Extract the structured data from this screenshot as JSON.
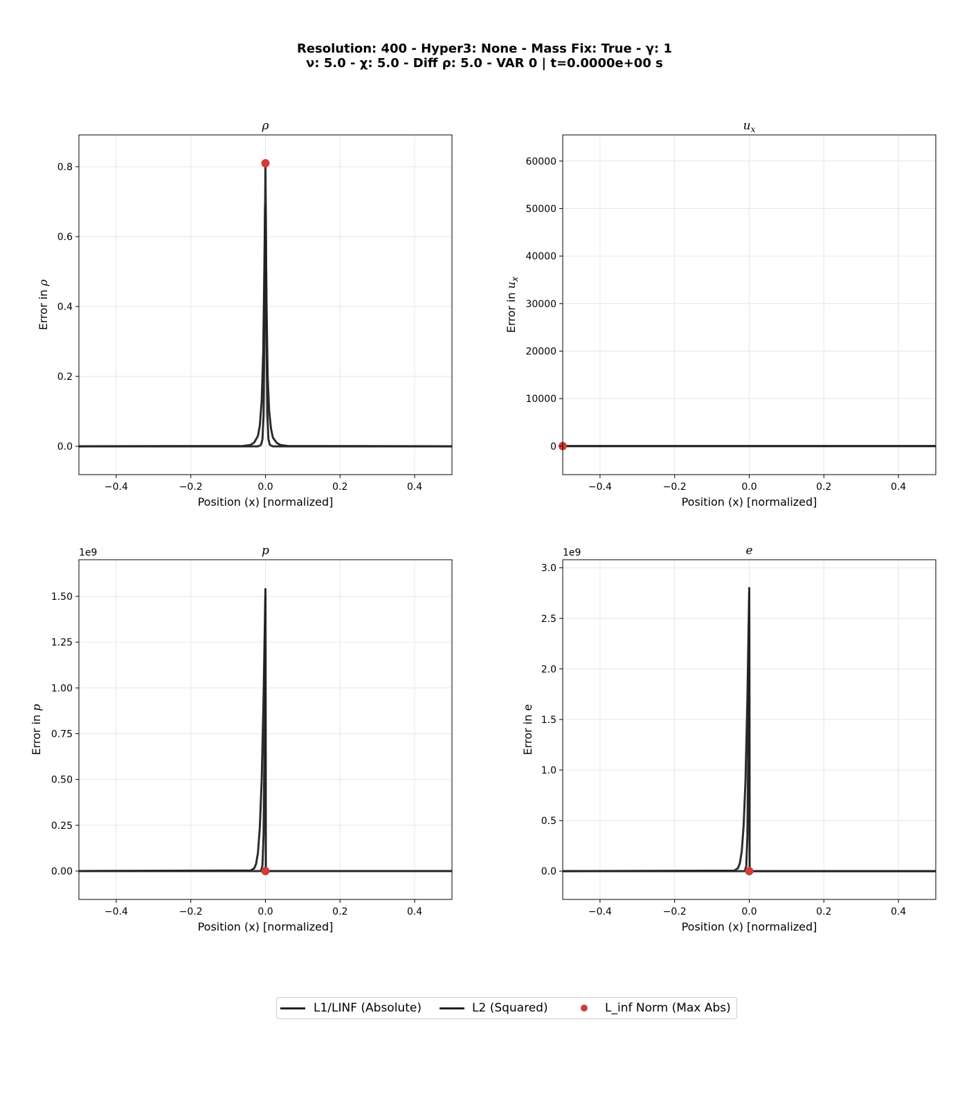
{
  "title": {
    "line1": "Resolution: 400 - Hyper3: None - Mass Fix: True - γ: 1",
    "line2": "ν: 5.0 - χ: 5.0 - Diff ρ: 5.0 - VAR 0 | t=0.0000e+00 s"
  },
  "legend": {
    "items": [
      "L1/LINF (Absolute)",
      "L2 (Squared)",
      "L_inf Norm (Max Abs)"
    ]
  },
  "colors": {
    "line": "#222222",
    "marker": "#d63a3a",
    "grid": "#e6e6e6"
  },
  "chart_data": [
    {
      "type": "line",
      "title_var": "ρ",
      "title_sub": "",
      "ylabel_prefix": "Error in ",
      "ylabel_var": "ρ",
      "ylabel_sub": "",
      "xlabel": "Position (x) [normalized]",
      "multiplier": "",
      "xlim": [
        -0.5,
        0.5
      ],
      "ylim": [
        -0.081,
        0.891
      ],
      "xticks": [
        -0.4,
        -0.2,
        0.0,
        0.2,
        0.4
      ],
      "xtick_labels": [
        "−0.4",
        "−0.2",
        "0.0",
        "0.2",
        "0.4"
      ],
      "yticks": [
        0.0,
        0.2,
        0.4,
        0.6,
        0.8
      ],
      "ytick_labels": [
        "0.0",
        "0.2",
        "0.4",
        "0.6",
        "0.8"
      ],
      "series": [
        {
          "legend_index": 0,
          "x": [
            -0.5,
            -0.06,
            -0.04,
            -0.03,
            -0.02,
            -0.015,
            -0.01,
            -0.006,
            -0.003,
            -0.001,
            0.0,
            0.001,
            0.003,
            0.006,
            0.01,
            0.015,
            0.02,
            0.03,
            0.04,
            0.06,
            0.5
          ],
          "y": [
            0.0,
            0.001,
            0.004,
            0.011,
            0.03,
            0.06,
            0.13,
            0.27,
            0.5,
            0.69,
            0.66,
            0.6,
            0.4,
            0.2,
            0.1,
            0.05,
            0.025,
            0.01,
            0.004,
            0.001,
            0.0
          ]
        },
        {
          "legend_index": 1,
          "x": [
            -0.5,
            -0.02,
            -0.012,
            -0.008,
            -0.005,
            -0.003,
            -0.0015,
            0.0,
            0.0015,
            0.003,
            0.005,
            0.008,
            0.012,
            0.02,
            0.5
          ],
          "y": [
            0.0,
            0.0,
            0.004,
            0.02,
            0.09,
            0.3,
            0.6,
            0.81,
            0.6,
            0.3,
            0.09,
            0.02,
            0.004,
            0.0,
            0.0
          ]
        }
      ],
      "linf_point": {
        "x": 0.0,
        "y": 0.81
      }
    },
    {
      "type": "line",
      "title_var": "u",
      "title_sub": "x",
      "ylabel_prefix": "Error in ",
      "ylabel_var": "u",
      "ylabel_sub": "x",
      "xlabel": "Position (x) [normalized]",
      "multiplier": "",
      "xlim": [
        -0.5,
        0.5
      ],
      "ylim": [
        -6000,
        65500
      ],
      "xticks": [
        -0.4,
        -0.2,
        0.0,
        0.2,
        0.4
      ],
      "xtick_labels": [
        "−0.4",
        "−0.2",
        "0.0",
        "0.2",
        "0.4"
      ],
      "yticks": [
        0,
        10000,
        20000,
        30000,
        40000,
        50000,
        60000
      ],
      "ytick_labels": [
        "0",
        "10000",
        "20000",
        "30000",
        "40000",
        "50000",
        "60000"
      ],
      "series": [
        {
          "legend_index": 0,
          "x": [
            -0.5,
            0.5
          ],
          "y": [
            0,
            0
          ]
        },
        {
          "legend_index": 1,
          "x": [
            -0.5,
            0.5
          ],
          "y": [
            0,
            0
          ]
        }
      ],
      "linf_point": {
        "x": -0.5,
        "y": 0
      }
    },
    {
      "type": "line",
      "title_var": "p",
      "title_sub": "",
      "ylabel_prefix": "Error in ",
      "ylabel_var": "p",
      "ylabel_sub": "",
      "xlabel": "Position (x) [normalized]",
      "multiplier": "1e9",
      "xlim": [
        -0.5,
        0.5
      ],
      "ylim": [
        -0.155,
        1.7
      ],
      "xticks": [
        -0.4,
        -0.2,
        0.0,
        0.2,
        0.4
      ],
      "xtick_labels": [
        "−0.4",
        "−0.2",
        "0.0",
        "0.2",
        "0.4"
      ],
      "yticks": [
        0.0,
        0.25,
        0.5,
        0.75,
        1.0,
        1.25,
        1.5
      ],
      "ytick_labels": [
        "0.00",
        "0.25",
        "0.50",
        "0.75",
        "1.00",
        "1.25",
        "1.50"
      ],
      "series": [
        {
          "legend_index": 0,
          "x": [
            -0.5,
            -0.04,
            -0.03,
            -0.025,
            -0.02,
            -0.015,
            -0.01,
            -0.005,
            -0.002,
            0.0,
            0.001,
            0.5
          ],
          "y": [
            0.0,
            0.003,
            0.015,
            0.04,
            0.1,
            0.24,
            0.5,
            0.95,
            1.3,
            1.54,
            0.0,
            0.0
          ]
        },
        {
          "legend_index": 1,
          "x": [
            -0.5,
            -0.012,
            -0.008,
            -0.005,
            -0.003,
            -0.0015,
            0.0,
            0.001,
            0.5
          ],
          "y": [
            0.0,
            0.0,
            0.03,
            0.2,
            0.6,
            1.1,
            1.5,
            0.0,
            0.0
          ]
        }
      ],
      "linf_point": {
        "x": 0.0,
        "y": 0.0
      }
    },
    {
      "type": "line",
      "title_var": "e",
      "title_sub": "",
      "ylabel_prefix": "Error in ",
      "ylabel_var": "",
      "ylabel_sub": "",
      "ylabel_plain": "e",
      "xlabel": "Position (x) [normalized]",
      "multiplier": "1e9",
      "xlim": [
        -0.5,
        0.5
      ],
      "ylim": [
        -0.28,
        3.08
      ],
      "xticks": [
        -0.4,
        -0.2,
        0.0,
        0.2,
        0.4
      ],
      "xtick_labels": [
        "−0.4",
        "−0.2",
        "0.0",
        "0.2",
        "0.4"
      ],
      "yticks": [
        0.0,
        0.5,
        1.0,
        1.5,
        2.0,
        2.5,
        3.0
      ],
      "ytick_labels": [
        "0.0",
        "0.5",
        "1.0",
        "1.5",
        "2.0",
        "2.5",
        "3.0"
      ],
      "series": [
        {
          "legend_index": 0,
          "x": [
            -0.5,
            -0.04,
            -0.03,
            -0.025,
            -0.02,
            -0.015,
            -0.01,
            -0.005,
            -0.002,
            0.0,
            0.001,
            0.5
          ],
          "y": [
            0.0,
            0.005,
            0.03,
            0.08,
            0.2,
            0.45,
            0.9,
            1.7,
            2.35,
            2.8,
            0.0,
            0.0
          ]
        },
        {
          "legend_index": 1,
          "x": [
            -0.5,
            -0.012,
            -0.008,
            -0.005,
            -0.003,
            -0.0015,
            0.0,
            0.001,
            0.5
          ],
          "y": [
            0.0,
            0.0,
            0.05,
            0.35,
            1.1,
            2.0,
            2.75,
            0.0,
            0.0
          ]
        }
      ],
      "linf_point": {
        "x": 0.0,
        "y": 0.0
      }
    }
  ]
}
